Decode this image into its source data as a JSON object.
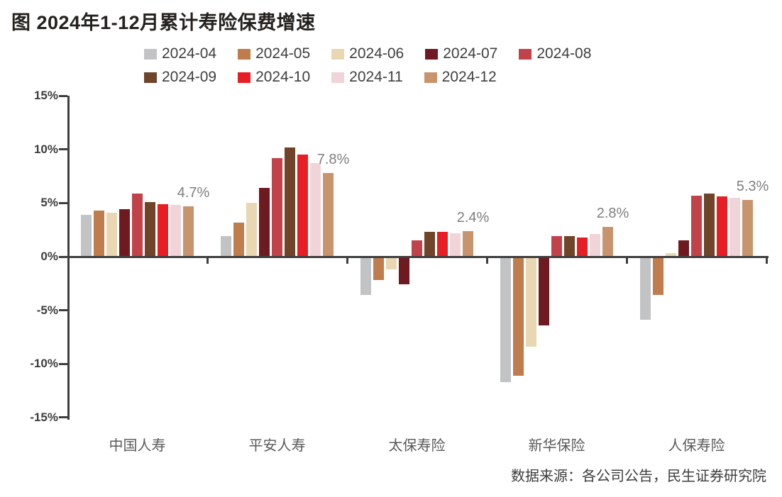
{
  "title": "图  2024年1-12月累计寿险保费增速",
  "source": "数据来源：各公司公告，民生证券研究院",
  "chart_data": {
    "type": "bar",
    "title": "图 2024年1-12月累计寿险保费增速",
    "categories": [
      "中国人寿",
      "平安人寿",
      "太保寿险",
      "新华保险",
      "人保寿险"
    ],
    "series": [
      {
        "name": "2024-04",
        "color": "#c2c3c5",
        "values": [
          3.9,
          1.9,
          -3.6,
          -11.7,
          -5.9
        ]
      },
      {
        "name": "2024-05",
        "color": "#bf7c4c",
        "values": [
          4.3,
          3.2,
          -2.2,
          -11.1,
          -3.6
        ]
      },
      {
        "name": "2024-06",
        "color": "#e9d7b4",
        "values": [
          4.1,
          5.0,
          -1.2,
          -8.4,
          0.3
        ]
      },
      {
        "name": "2024-07",
        "color": "#6f1a21",
        "values": [
          4.4,
          6.4,
          -2.6,
          -6.4,
          1.5
        ]
      },
      {
        "name": "2024-08",
        "color": "#c2424a",
        "values": [
          5.9,
          9.2,
          1.5,
          1.9,
          5.7
        ]
      },
      {
        "name": "2024-09",
        "color": "#6f4429",
        "values": [
          5.1,
          10.2,
          2.3,
          1.9,
          5.9
        ]
      },
      {
        "name": "2024-10",
        "color": "#e71f25",
        "values": [
          4.9,
          9.5,
          2.3,
          1.8,
          5.6
        ]
      },
      {
        "name": "2024-11",
        "color": "#f1d4d8",
        "values": [
          4.8,
          8.7,
          2.2,
          2.1,
          5.5
        ]
      },
      {
        "name": "2024-12",
        "color": "#c8946d",
        "values": [
          4.7,
          7.8,
          2.4,
          2.8,
          5.3
        ]
      }
    ],
    "annotations": [
      {
        "category": "中国人寿",
        "series": "2024-12",
        "text": "4.7%"
      },
      {
        "category": "平安人寿",
        "series": "2024-12",
        "text": "7.8%"
      },
      {
        "category": "太保寿险",
        "series": "2024-12",
        "text": "2.4%"
      },
      {
        "category": "新华保险",
        "series": "2024-12",
        "text": "2.8%"
      },
      {
        "category": "人保寿险",
        "series": "2024-12",
        "text": "5.3%"
      }
    ],
    "ylim": [
      -15,
      15
    ],
    "ytick_step": 5,
    "ytick_labels": [
      "15%",
      "10%",
      "5%",
      "0%",
      "-5%",
      "-10%",
      "-15%"
    ],
    "grid": false,
    "legend_position": "top",
    "legend_rows": [
      [
        "2024-04",
        "2024-05",
        "2024-06",
        "2024-07",
        "2024-08"
      ],
      [
        "2024-09",
        "2024-10",
        "2024-11",
        "2024-12"
      ]
    ],
    "axis_color": "#3f3f3f"
  }
}
